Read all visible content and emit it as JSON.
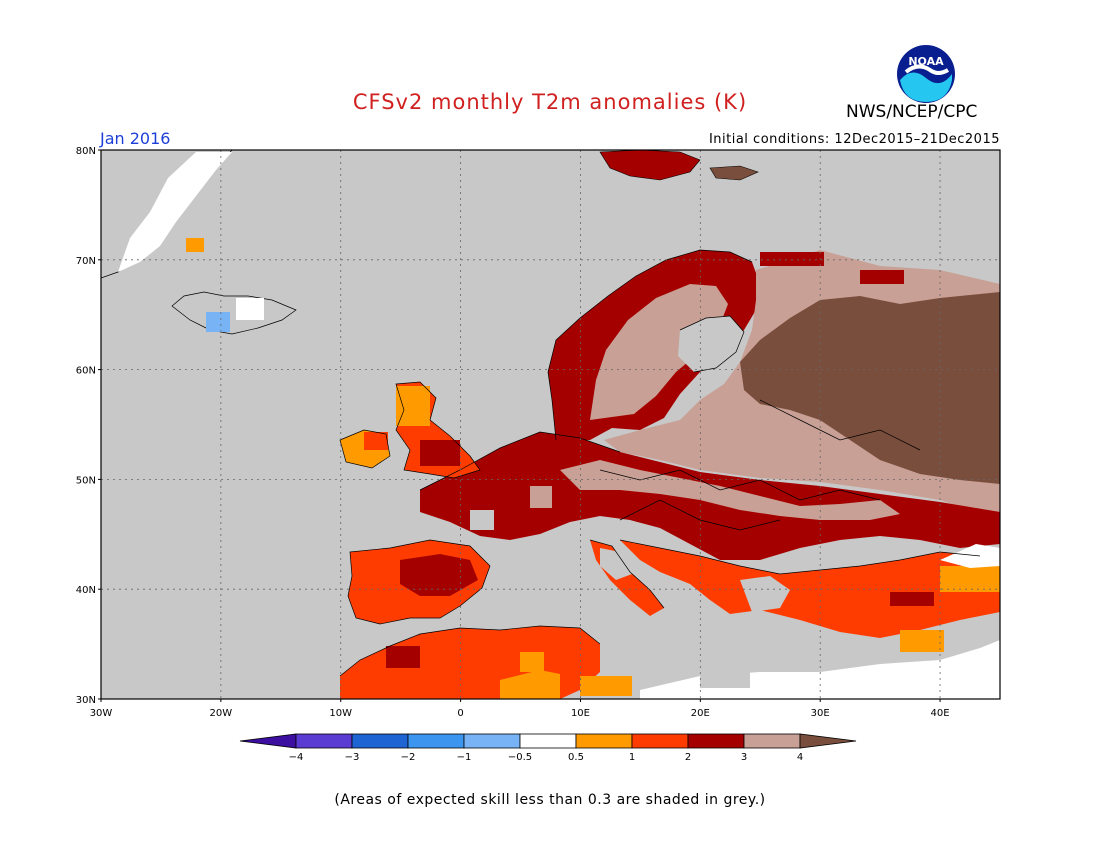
{
  "title": "CFSv2 monthly T2m anomalies (K)",
  "agency": "NWS/NCEP/CPC",
  "logo_text": "NOAA",
  "month": "Jan 2016",
  "initial_conditions": "Initial conditions: 12Dec2015–21Dec2015",
  "footnote": "(Areas of expected skill less than 0.3 are shaded in grey.)",
  "map": {
    "lon_range": [
      -30,
      45
    ],
    "lat_range": [
      30,
      80
    ],
    "lat_ticks": [
      "30N",
      "40N",
      "50N",
      "60N",
      "70N",
      "80N"
    ],
    "lon_ticks": [
      "30W",
      "20W",
      "10W",
      "0",
      "10E",
      "20E",
      "30E",
      "40E"
    ],
    "gridlines": "dotted",
    "low_skill_color": "#c8c8c8"
  },
  "legend": {
    "labels": [
      "−4",
      "−3",
      "−2",
      "−1",
      "−0.5",
      "0.5",
      "1",
      "2",
      "3",
      "4"
    ],
    "colors": [
      "#3c0fa0",
      "#5a3cd2",
      "#1e64d2",
      "#3c96f0",
      "#78b4f5",
      "#ffffff",
      "#ff9b00",
      "#ff3c00",
      "#a50000",
      "#c8a096",
      "#7a4e3c"
    ]
  }
}
